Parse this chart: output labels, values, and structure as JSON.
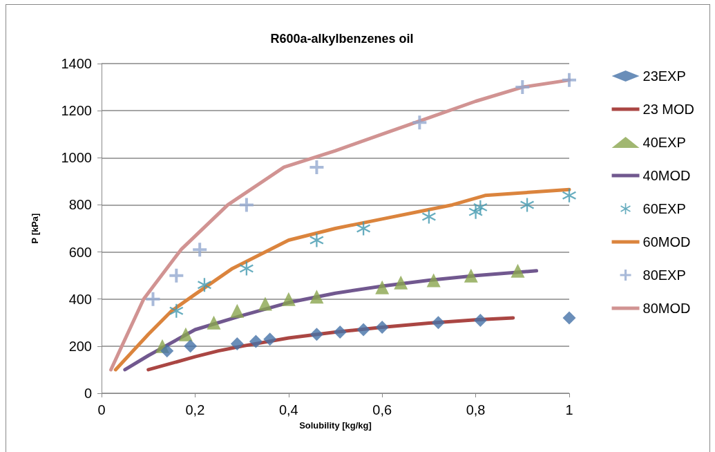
{
  "chart_data": {
    "type": "line",
    "title": "R600a-alkylbenzenes oil",
    "xlabel": "Solubility [kg/kg]",
    "ylabel": "P [kPa]",
    "xlim": [
      0,
      1
    ],
    "xticks": [
      0,
      {
        "value": 0.2,
        "label": "0,2"
      },
      {
        "value": 0.4,
        "label": "0,4"
      },
      {
        "value": 0.6,
        "label": "0,6"
      },
      {
        "value": 0.8,
        "label": "0,8"
      },
      1
    ],
    "ylim": [
      0,
      1400
    ],
    "yticks": [
      0,
      200,
      400,
      600,
      800,
      1000,
      1200,
      1400
    ],
    "grid": "y",
    "legend": "right",
    "series": [
      {
        "name": "23EXP",
        "type": "scatter",
        "marker": "diamond",
        "color": "#4572a7",
        "x": [
          0.14,
          0.19,
          0.29,
          0.33,
          0.36,
          0.46,
          0.51,
          0.56,
          0.6,
          0.72,
          0.81,
          1.0
        ],
        "values": [
          180,
          200,
          210,
          220,
          230,
          250,
          260,
          270,
          280,
          300,
          310,
          320
        ]
      },
      {
        "name": "23 MOD",
        "marker": "none",
        "color": "#aa4643",
        "x": [
          0.1,
          0.2,
          0.25,
          0.3,
          0.4,
          0.5,
          0.6,
          0.7,
          0.8,
          0.88
        ],
        "values": [
          100,
          155,
          180,
          200,
          235,
          260,
          280,
          298,
          312,
          320
        ]
      },
      {
        "name": "40EXP",
        "type": "scatter",
        "marker": "triangle",
        "color": "#89a54e",
        "x": [
          0.13,
          0.18,
          0.24,
          0.29,
          0.35,
          0.4,
          0.46,
          0.6,
          0.64,
          0.71,
          0.79,
          0.89
        ],
        "values": [
          200,
          250,
          300,
          350,
          380,
          400,
          410,
          450,
          470,
          480,
          500,
          520
        ]
      },
      {
        "name": "40MOD",
        "marker": "none",
        "color": "#71588f",
        "x": [
          0.05,
          0.1,
          0.2,
          0.3,
          0.4,
          0.5,
          0.6,
          0.7,
          0.8,
          0.93
        ],
        "values": [
          100,
          160,
          270,
          330,
          385,
          425,
          455,
          480,
          500,
          520
        ]
      },
      {
        "name": "60EXP",
        "type": "scatter",
        "marker": "star",
        "color": "#4198af",
        "x": [
          0.16,
          0.22,
          0.31,
          0.46,
          0.56,
          0.7,
          0.8,
          0.81,
          0.91,
          1.0
        ],
        "values": [
          350,
          460,
          530,
          650,
          700,
          750,
          770,
          790,
          800,
          840
        ]
      },
      {
        "name": "60MOD",
        "marker": "none",
        "color": "#db843d",
        "x": [
          0.03,
          0.1,
          0.15,
          0.2,
          0.28,
          0.4,
          0.5,
          0.6,
          0.7,
          0.75,
          0.82,
          1.0
        ],
        "values": [
          100,
          250,
          350,
          420,
          530,
          650,
          700,
          740,
          780,
          800,
          840,
          865
        ]
      },
      {
        "name": "80EXP",
        "type": "scatter",
        "marker": "cross",
        "color": "#93a9cf",
        "x": [
          0.11,
          0.16,
          0.21,
          0.31,
          0.46,
          0.68,
          0.9,
          1.0
        ],
        "values": [
          400,
          500,
          610,
          800,
          960,
          1150,
          1300,
          1330
        ]
      },
      {
        "name": "80MOD",
        "marker": "none",
        "color": "#d19392",
        "x": [
          0.02,
          0.09,
          0.17,
          0.27,
          0.39,
          0.5,
          0.6,
          0.7,
          0.8,
          0.9,
          1.0
        ],
        "values": [
          100,
          400,
          610,
          800,
          960,
          1030,
          1100,
          1170,
          1240,
          1300,
          1330
        ]
      }
    ]
  }
}
